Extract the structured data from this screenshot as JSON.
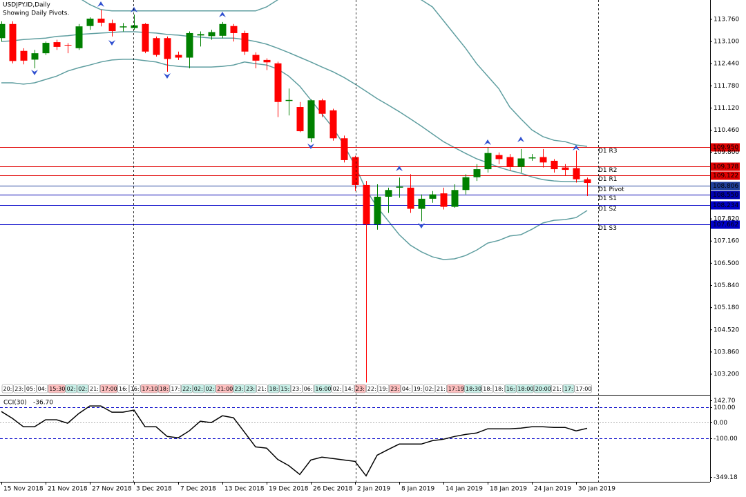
{
  "chart_data": [
    {
      "type": "candlestick",
      "title": "USDJPY.ID,Daily",
      "subtitle": "Showing Daily Pivots.",
      "categories": [
        "15 Nov 2018",
        null,
        null,
        null,
        "21 Nov 2018",
        null,
        null,
        null,
        "27 Nov 2018",
        null,
        null,
        null,
        "3 Dec 2018",
        null,
        null,
        null,
        "7 Dec 2018",
        null,
        null,
        null,
        "13 Dec 2018",
        null,
        null,
        null,
        "19 Dec 2018",
        null,
        null,
        null,
        "26 Dec 2018",
        null,
        null,
        null,
        "2 Jan 2019",
        null,
        null,
        null,
        "8 Jan 2019",
        null,
        null,
        null,
        "14 Jan 2019",
        null,
        null,
        null,
        "18 Jan 2019",
        null,
        null,
        null,
        "24 Jan 2019",
        null,
        null,
        null,
        "30 Jan 2019",
        null
      ],
      "open": [
        113.2,
        113.62,
        112.82,
        112.56,
        112.75,
        113.08,
        113.0,
        112.9,
        113.56,
        113.78,
        113.65,
        113.52,
        113.5,
        113.62,
        113.2,
        113.2,
        112.7,
        112.62,
        113.28,
        113.26,
        113.27,
        113.56,
        113.35,
        112.7,
        112.55,
        112.45,
        111.33,
        111.15,
        110.22,
        111.35,
        111.05,
        110.22,
        109.66,
        108.83,
        107.66,
        108.48,
        108.75,
        108.75,
        108.12,
        108.42,
        108.58,
        108.18,
        108.68,
        109.06,
        109.3,
        109.72,
        109.66,
        109.37,
        109.62,
        109.66,
        109.55,
        109.35,
        109.33,
        109.0
      ],
      "high": [
        113.7,
        113.7,
        112.9,
        112.85,
        113.1,
        113.15,
        113.05,
        113.62,
        113.82,
        114.05,
        113.75,
        113.65,
        113.9,
        113.65,
        113.25,
        113.25,
        112.8,
        113.4,
        113.4,
        113.45,
        113.68,
        113.62,
        113.42,
        112.78,
        112.6,
        112.5,
        111.7,
        111.3,
        111.38,
        111.4,
        111.1,
        110.3,
        109.7,
        108.95,
        108.85,
        108.75,
        109.05,
        109.15,
        108.55,
        108.65,
        108.75,
        108.85,
        109.15,
        109.45,
        109.95,
        109.8,
        109.75,
        109.9,
        109.75,
        109.9,
        109.6,
        109.45,
        109.85,
        109.05
      ],
      "low": [
        113.1,
        112.45,
        112.42,
        112.3,
        112.7,
        112.85,
        112.75,
        112.85,
        113.45,
        113.55,
        113.25,
        113.4,
        113.45,
        112.75,
        112.65,
        112.2,
        112.55,
        112.3,
        112.95,
        113.15,
        113.2,
        113.1,
        112.7,
        112.3,
        112.25,
        110.85,
        110.9,
        110.4,
        110.1,
        110.85,
        110.15,
        109.5,
        108.65,
        102.95,
        107.5,
        108.0,
        108.45,
        108.0,
        107.75,
        108.3,
        108.1,
        108.15,
        108.55,
        108.95,
        109.2,
        109.45,
        109.25,
        109.2,
        109.55,
        109.35,
        109.2,
        109.1,
        108.9,
        108.5
      ],
      "close": [
        113.62,
        112.52,
        112.53,
        112.75,
        113.06,
        112.94,
        112.98,
        113.55,
        113.78,
        113.66,
        113.41,
        113.55,
        113.58,
        112.8,
        112.7,
        112.58,
        112.62,
        113.35,
        113.32,
        113.38,
        113.62,
        113.35,
        112.8,
        112.53,
        112.48,
        111.3,
        111.36,
        110.43,
        111.35,
        110.95,
        110.22,
        109.57,
        108.83,
        107.66,
        108.48,
        108.68,
        108.78,
        108.12,
        108.42,
        108.55,
        108.18,
        108.68,
        109.06,
        109.3,
        109.78,
        109.6,
        109.37,
        109.62,
        109.65,
        109.5,
        109.3,
        109.28,
        109.0,
        108.89
      ],
      "up_color": "#008000",
      "down_color": "#ff0000",
      "band_color": "#5f9ea0",
      "bands": [
        {
          "values": [
            114.9,
            114.85,
            114.8,
            114.75,
            114.7,
            114.6,
            114.5,
            114.4,
            114.2,
            114.05,
            114.01,
            114.01,
            114.01,
            114.01,
            114.01,
            114.01,
            114.01,
            114.01,
            114.01,
            114.01,
            114.01,
            114.01,
            114.01,
            114.01,
            114.13,
            114.34,
            114.6,
            114.8,
            115.0,
            115.2,
            115.3,
            115.4,
            115.4,
            115.3,
            115.1,
            114.9,
            114.7,
            114.5,
            114.34,
            114.13,
            113.72,
            113.31,
            112.9,
            112.44,
            112.07,
            111.7,
            111.15,
            110.8,
            110.47,
            110.27,
            110.16,
            110.12,
            110.02,
            109.98
          ]
        },
        {
          "values": [
            113.1,
            113.12,
            113.16,
            113.18,
            113.2,
            113.25,
            113.27,
            113.31,
            113.33,
            113.35,
            113.37,
            113.39,
            113.39,
            113.37,
            113.35,
            113.31,
            113.29,
            113.25,
            113.23,
            113.2,
            113.2,
            113.2,
            113.16,
            113.1,
            113.02,
            112.9,
            112.77,
            112.63,
            112.49,
            112.34,
            112.2,
            112.03,
            111.83,
            111.62,
            111.4,
            111.21,
            111.01,
            110.8,
            110.58,
            110.35,
            110.12,
            109.94,
            109.77,
            109.61,
            109.49,
            109.36,
            109.26,
            109.18,
            109.07,
            108.99,
            108.95,
            108.93,
            108.93,
            108.95
          ]
        },
        {
          "values": [
            111.87,
            111.87,
            111.83,
            111.87,
            111.97,
            112.07,
            112.22,
            112.32,
            112.4,
            112.49,
            112.55,
            112.57,
            112.57,
            112.53,
            112.49,
            112.4,
            112.36,
            112.34,
            112.34,
            112.34,
            112.36,
            112.4,
            112.49,
            112.44,
            112.4,
            112.28,
            112.07,
            111.77,
            111.36,
            110.95,
            110.53,
            110.02,
            109.4,
            108.69,
            108.17,
            107.76,
            107.35,
            107.04,
            106.84,
            106.69,
            106.61,
            106.63,
            106.73,
            106.89,
            107.1,
            107.18,
            107.31,
            107.35,
            107.51,
            107.7,
            107.78,
            107.8,
            107.86,
            108.07
          ]
        }
      ],
      "pivots": [
        {
          "name": "D1 R3",
          "value": 109.95,
          "value_label": "109.950",
          "color": "#e00000"
        },
        {
          "name": "D1 R2",
          "value": 109.378,
          "value_label": "109.378",
          "color": "#e00000"
        },
        {
          "name": "D1 R1",
          "value": 109.122,
          "value_label": "109.122",
          "color": "#e00000"
        },
        {
          "name": "D1 Pivot",
          "value": 108.806,
          "value_label": "108.806",
          "color": "#1f3f9a"
        },
        {
          "name": "D1 S1",
          "value": 108.55,
          "value_label": "108.550",
          "color": "#0000b0"
        },
        {
          "name": "D1 S2",
          "value": 108.234,
          "value_label": "108.234",
          "color": "#0000c8"
        },
        {
          "name": "D1 S3",
          "value": 107.662,
          "value_label": "107.662",
          "color": "#0000c8"
        }
      ],
      "ylim": [
        102.933,
        114.335
      ],
      "yticks": [
        {
          "value": 113.76,
          "label": "113.760"
        },
        {
          "value": 113.1,
          "label": "113.100"
        },
        {
          "value": 112.44,
          "label": "112.440"
        },
        {
          "value": 111.78,
          "label": "111.780"
        },
        {
          "value": 111.12,
          "label": "111.120"
        },
        {
          "value": 110.46,
          "label": "110.460"
        },
        {
          "value": 109.8,
          "label": "109.800"
        },
        {
          "value": 107.82,
          "label": "107.820"
        },
        {
          "value": 107.16,
          "label": "107.160"
        },
        {
          "value": 106.5,
          "label": "106.500"
        },
        {
          "value": 105.84,
          "label": "105.840"
        },
        {
          "value": 105.18,
          "label": "105.180"
        },
        {
          "value": 104.52,
          "label": "104.520"
        },
        {
          "value": 103.86,
          "label": "103.860"
        },
        {
          "value": 103.2,
          "label": "103.200"
        }
      ],
      "time_labels": [
        {
          "text": "20:",
          "color": "#ffffff"
        },
        {
          "text": "23:",
          "color": "#ffffff"
        },
        {
          "text": "05:",
          "color": "#ffffff"
        },
        {
          "text": "04:",
          "color": "#ffffff"
        },
        {
          "text": "15:30",
          "color": "#ffc0c0"
        },
        {
          "text": "02:",
          "color": "#c8f0e8"
        },
        {
          "text": "02:",
          "color": "#c8f0e8"
        },
        {
          "text": "21:",
          "color": "#ffffff"
        },
        {
          "text": "17:00",
          "color": "#ffc0c0"
        },
        {
          "text": "16:",
          "color": "#ffffff"
        },
        {
          "text": "16:",
          "color": "#ffffff"
        },
        {
          "text": "17:10",
          "color": "#ffc0c0"
        },
        {
          "text": "18:",
          "color": "#ffc0c0"
        },
        {
          "text": "17:",
          "color": "#ffffff"
        },
        {
          "text": "22:",
          "color": "#c8f0e8"
        },
        {
          "text": "02:",
          "color": "#c8f0e8"
        },
        {
          "text": "02:",
          "color": "#c8f0e8"
        },
        {
          "text": "21:00",
          "color": "#ffc0c0"
        },
        {
          "text": "23:",
          "color": "#c8f0e8"
        },
        {
          "text": "23:",
          "color": "#c8f0e8"
        },
        {
          "text": "21:",
          "color": "#ffffff"
        },
        {
          "text": "18:",
          "color": "#c8f0e8"
        },
        {
          "text": "15:",
          "color": "#c8f0e8"
        },
        {
          "text": "23:",
          "color": "#ffffff"
        },
        {
          "text": "06:",
          "color": "#ffffff"
        },
        {
          "text": "16:00",
          "color": "#c8f0e8"
        },
        {
          "text": "02:",
          "color": "#ffffff"
        },
        {
          "text": "14:",
          "color": "#ffffff"
        },
        {
          "text": "23:",
          "color": "#ffc0c0"
        },
        {
          "text": "22:",
          "color": "#ffffff"
        },
        {
          "text": "19:",
          "color": "#ffffff"
        },
        {
          "text": "23:",
          "color": "#ffc0c0"
        },
        {
          "text": "04:",
          "color": "#ffffff"
        },
        {
          "text": "19:",
          "color": "#ffffff"
        },
        {
          "text": "02:",
          "color": "#ffffff"
        },
        {
          "text": "21:",
          "color": "#ffffff"
        },
        {
          "text": "17:19",
          "color": "#ffc0c0"
        },
        {
          "text": "18:30",
          "color": "#c8f0e8"
        },
        {
          "text": "18:",
          "color": "#ffffff"
        },
        {
          "text": "18:",
          "color": "#ffffff"
        },
        {
          "text": "16:",
          "color": "#c8f0e8"
        },
        {
          "text": "18:00",
          "color": "#c8f0e8"
        },
        {
          "text": "20:00",
          "color": "#c8f0e8"
        },
        {
          "text": "21:",
          "color": "#ffffff"
        },
        {
          "text": "17:",
          "color": "#c8f0e8"
        },
        {
          "text": "17:00",
          "color": "#ffffff"
        }
      ]
    },
    {
      "type": "line",
      "name": "CCI(30)",
      "value_label": "-36.70",
      "color": "#000000",
      "level_color": "#0000c8",
      "values": [
        71,
        27,
        -27,
        -27,
        18,
        18,
        -4,
        58,
        107,
        107,
        67,
        67,
        80,
        -27,
        -27,
        -89,
        -98,
        -53,
        9,
        0,
        44,
        31,
        -62,
        -156,
        -164,
        -236,
        -276,
        -333,
        -240,
        -222,
        -231,
        -240,
        -249,
        -342,
        -209,
        -173,
        -138,
        -138,
        -138,
        -116,
        -107,
        -89,
        -76,
        -67,
        -40,
        -40,
        -40,
        -36,
        -27,
        -27,
        -31,
        -31,
        -53,
        -36.7
      ],
      "ylim": [
        -349.18,
        142.7
      ],
      "yticks": [
        {
          "value": 142.7,
          "label": "142.70"
        },
        {
          "value": 100,
          "label": "100.00"
        },
        {
          "value": 0,
          "label": "0.00"
        },
        {
          "value": -100,
          "label": "-100.00"
        },
        {
          "value": -349.18,
          "label": "-349.18"
        }
      ]
    }
  ]
}
